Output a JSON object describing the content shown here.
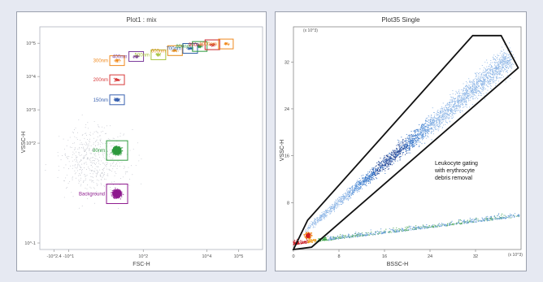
{
  "chart_data": [
    {
      "type": "scatter",
      "title": "Plot1 : mix",
      "xlabel": "FSC-H",
      "ylabel": "VSSC-H",
      "scale": "log",
      "xlim": [
        -200,
        300000
      ],
      "ylim": [
        -10,
        100000
      ],
      "x_tick_labels": [
        "-10^2.4",
        "-10^1",
        "10^2",
        "10^4",
        "10^5"
      ],
      "y_tick_labels": [
        "10^-1",
        "10^2",
        "10^3",
        "10^4",
        "10^5"
      ],
      "gates": [
        {
          "label": "Background",
          "color": "#8e1a8e",
          "x": 15,
          "y": 3,
          "count": 700
        },
        {
          "label": "80nm",
          "color": "#2e9a3e",
          "x": 15,
          "y": 60,
          "count": 750
        },
        {
          "label": "150nm",
          "color": "#3a62b0",
          "x": 15,
          "y": 2000,
          "count": 120
        },
        {
          "label": "200nm",
          "color": "#d83a3a",
          "x": 15,
          "y": 8000,
          "count": 60
        },
        {
          "label": "300nm",
          "color": "#f08a1e",
          "x": 15,
          "y": 30000,
          "count": 40
        },
        {
          "label": "400nm",
          "color": "#7d3f9e",
          "x": 60,
          "y": 40000,
          "count": 60
        },
        {
          "label": "500nm",
          "color": "#a6c23a",
          "x": 300,
          "y": 45000,
          "count": 40
        },
        {
          "label": "600nm",
          "color": "#e38a17",
          "x": 1000,
          "y": 60000,
          "count": 40
        },
        {
          "label": "700nm",
          "color": "#2f5fa8",
          "x": 3000,
          "y": 70000,
          "count": 40
        },
        {
          "label": "800nm",
          "color": "#2e9a3e",
          "x": 6000,
          "y": 80000,
          "count": 40
        },
        {
          "label": "900nm",
          "color": "#c8232a",
          "x": 15000,
          "y": 90000,
          "count": 40
        },
        {
          "label": "1000nm",
          "color": "#f08a1e",
          "x": 40000,
          "y": 95000,
          "count": 40
        }
      ]
    },
    {
      "type": "scatter",
      "title": "Plot35 Single",
      "xlabel": "BSSC-H",
      "ylabel": "VSSC-H",
      "xlim": [
        0,
        40
      ],
      "ylim": [
        0,
        38
      ],
      "x_ticks": [
        0,
        8,
        16,
        24,
        32
      ],
      "y_ticks": [
        8,
        16,
        24,
        32
      ],
      "x_multiplier_label": "(x 10^3)",
      "y_multiplier_label": "(x 10^3)",
      "gate_polygon": [
        [
          0,
          0
        ],
        [
          2.5,
          5
        ],
        [
          31.5,
          36.5
        ],
        [
          36.5,
          36.5
        ],
        [
          39.5,
          31
        ],
        [
          3.2,
          0.4
        ]
      ],
      "annotation": "Leukocyte gating with erythrocyte debris removal",
      "populations": [
        {
          "label": "",
          "x_range": [
            2,
            38
          ],
          "slope": 0.82,
          "count": 3000
        },
        {
          "label": "",
          "x_range": [
            0,
            40
          ],
          "slope": 0.12,
          "count": 900
        }
      ]
    }
  ]
}
